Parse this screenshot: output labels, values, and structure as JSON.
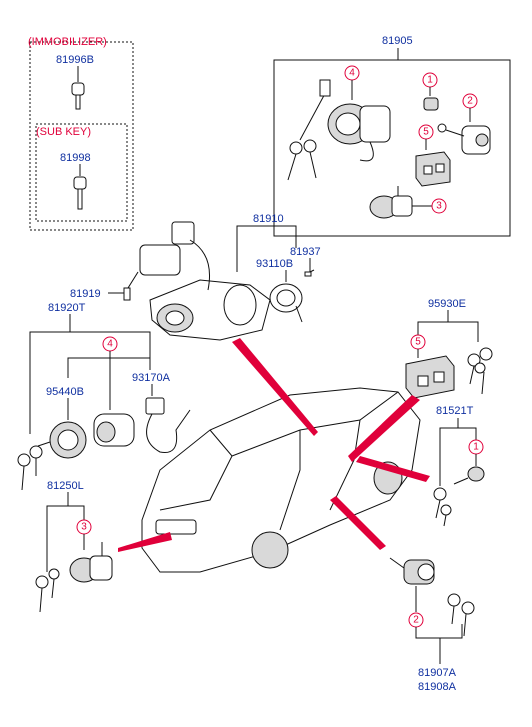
{
  "headers": {
    "immobilizer": "(IMMOBILIZER)",
    "sub_key": "(SUB KEY)"
  },
  "parts": {
    "p81905": "81905",
    "p81996B": "81996B",
    "p81998": "81998",
    "p81910": "81910",
    "p93110B": "93110B",
    "p81937": "81937",
    "p81919": "81919",
    "p81920T": "81920T",
    "p95930E": "95930E",
    "p95440B": "95440B",
    "p93170A": "93170A",
    "p81521T": "81521T",
    "p81250L": "81250L",
    "p81907A": "81907A",
    "p81908A": "81908A"
  },
  "callouts": {
    "top4": "4",
    "top1": "1",
    "top2": "2",
    "top5": "5",
    "top3": "3",
    "mid4": "4",
    "right5": "5",
    "right1": "1",
    "left3": "3",
    "bottom2": "2"
  },
  "colors": {
    "part_number": "#1030a0",
    "callout": "#e0003a",
    "line": "#111111"
  }
}
